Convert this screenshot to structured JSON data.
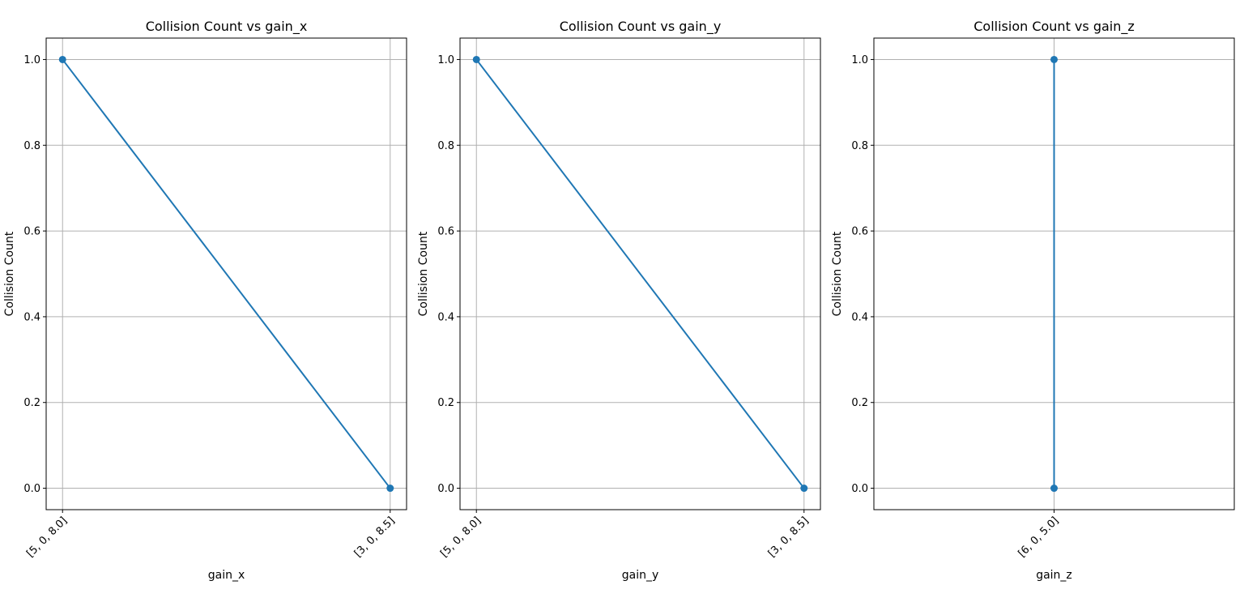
{
  "chart_data": [
    {
      "type": "line",
      "title": "Collision Count vs gain_x",
      "xlabel": "gain_x",
      "ylabel": "Collision Count",
      "categories": [
        "[5, 0, 8.0]",
        "[3, 0, 8.5]"
      ],
      "x_tick_rotation": 45,
      "ylim": [
        -0.05,
        1.05
      ],
      "y_ticks": [
        0.0,
        0.2,
        0.4,
        0.6,
        0.8,
        1.0
      ],
      "y_tick_labels": [
        "0.0",
        "0.2",
        "0.4",
        "0.6",
        "0.8",
        "1.0"
      ],
      "grid": true,
      "series": [
        {
          "points": [
            {
              "x": "[5, 0, 8.0]",
              "y": 1
            },
            {
              "x": "[3, 0, 8.5]",
              "y": 0
            }
          ]
        }
      ]
    },
    {
      "type": "line",
      "title": "Collision Count vs gain_y",
      "xlabel": "gain_y",
      "ylabel": "Collision Count",
      "categories": [
        "[5, 0, 8.0]",
        "[3, 0, 8.5]"
      ],
      "x_tick_rotation": 45,
      "ylim": [
        -0.05,
        1.05
      ],
      "y_ticks": [
        0.0,
        0.2,
        0.4,
        0.6,
        0.8,
        1.0
      ],
      "y_tick_labels": [
        "0.0",
        "0.2",
        "0.4",
        "0.6",
        "0.8",
        "1.0"
      ],
      "grid": true,
      "series": [
        {
          "points": [
            {
              "x": "[5, 0, 8.0]",
              "y": 1
            },
            {
              "x": "[3, 0, 8.5]",
              "y": 0
            }
          ]
        }
      ]
    },
    {
      "type": "line",
      "title": "Collision Count vs gain_z",
      "xlabel": "gain_z",
      "ylabel": "Collision Count",
      "categories": [
        "[6, 0, 5.0]"
      ],
      "x_tick_rotation": 45,
      "ylim": [
        -0.05,
        1.05
      ],
      "y_ticks": [
        0.0,
        0.2,
        0.4,
        0.6,
        0.8,
        1.0
      ],
      "y_tick_labels": [
        "0.0",
        "0.2",
        "0.4",
        "0.6",
        "0.8",
        "1.0"
      ],
      "grid": true,
      "series": [
        {
          "points": [
            {
              "x": "[6, 0, 5.0]",
              "y": 1
            },
            {
              "x": "[6, 0, 5.0]",
              "y": 0
            }
          ]
        }
      ]
    }
  ],
  "colors": {
    "line": "#1f77b4",
    "grid": "#b0b0b0",
    "axes": "#000000"
  }
}
